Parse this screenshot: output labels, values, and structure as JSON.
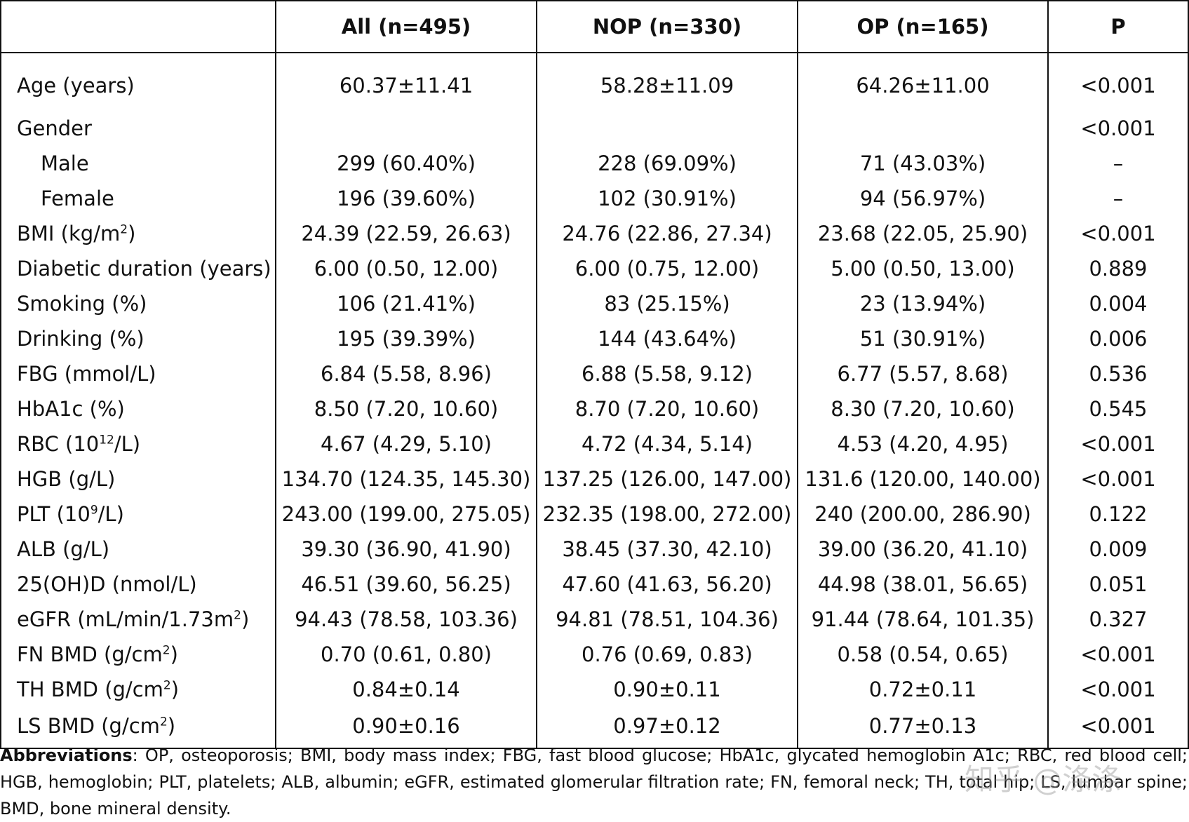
{
  "table": {
    "headers": [
      "",
      "All (n=495)",
      "NOP (n=330)",
      "OP (n=165)",
      "P"
    ],
    "rows": [
      {
        "label": "Age (years)",
        "sup": "",
        "label_after": "",
        "all": "60.37±11.41",
        "nop": "58.28±11.09",
        "op": "64.26±11.00",
        "p": "<0.001"
      },
      {
        "label": "Gender",
        "sup": "",
        "label_after": "",
        "all": "",
        "nop": "",
        "op": "",
        "p": "<0.001"
      },
      {
        "label": "Male",
        "sup": "",
        "label_after": "",
        "all": "299 (60.40%)",
        "nop": "228 (69.09%)",
        "op": "71 (43.03%)",
        "p": "–",
        "sub": true
      },
      {
        "label": "Female",
        "sup": "",
        "label_after": "",
        "all": "196 (39.60%)",
        "nop": "102 (30.91%)",
        "op": "94 (56.97%)",
        "p": "–",
        "sub": true
      },
      {
        "label": "BMI (kg/m",
        "sup": "2",
        "label_after": ")",
        "all": "24.39 (22.59, 26.63)",
        "nop": "24.76 (22.86, 27.34)",
        "op": "23.68 (22.05, 25.90)",
        "p": "<0.001"
      },
      {
        "label": "Diabetic duration (years)",
        "sup": "",
        "label_after": "",
        "all": "6.00 (0.50, 12.00)",
        "nop": "6.00 (0.75, 12.00)",
        "op": "5.00 (0.50, 13.00)",
        "p": "0.889"
      },
      {
        "label": "Smoking (%)",
        "sup": "",
        "label_after": "",
        "all": "106 (21.41%)",
        "nop": "83 (25.15%)",
        "op": "23 (13.94%)",
        "p": "0.004"
      },
      {
        "label": "Drinking (%)",
        "sup": "",
        "label_after": "",
        "all": "195 (39.39%)",
        "nop": "144 (43.64%)",
        "op": "51 (30.91%)",
        "p": "0.006"
      },
      {
        "label": "FBG (mmol/L)",
        "sup": "",
        "label_after": "",
        "all": "6.84 (5.58, 8.96)",
        "nop": "6.88 (5.58, 9.12)",
        "op": "6.77 (5.57, 8.68)",
        "p": "0.536"
      },
      {
        "label": "HbA1c (%)",
        "sup": "",
        "label_after": "",
        "all": "8.50 (7.20, 10.60)",
        "nop": "8.70 (7.20, 10.60)",
        "op": "8.30 (7.20, 10.60)",
        "p": "0.545"
      },
      {
        "label": "RBC (10",
        "sup": "12",
        "label_after": "/L)",
        "all": "4.67 (4.29, 5.10)",
        "nop": "4.72 (4.34, 5.14)",
        "op": "4.53 (4.20, 4.95)",
        "p": "<0.001"
      },
      {
        "label": "HGB (g/L)",
        "sup": "",
        "label_after": "",
        "all": "134.70 (124.35, 145.30)",
        "nop": "137.25 (126.00, 147.00)",
        "op": "131.6 (120.00, 140.00)",
        "p": "<0.001"
      },
      {
        "label": "PLT (10",
        "sup": "9",
        "label_after": "/L)",
        "all": "243.00 (199.00, 275.05)",
        "nop": "232.35 (198.00, 272.00)",
        "op": "240 (200.00, 286.90)",
        "p": "0.122"
      },
      {
        "label": "ALB (g/L)",
        "sup": "",
        "label_after": "",
        "all": "39.30 (36.90, 41.90)",
        "nop": "38.45 (37.30, 42.10)",
        "op": "39.00 (36.20, 41.10)",
        "p": "0.009"
      },
      {
        "label": "25(OH)D (nmol/L)",
        "sup": "",
        "label_after": "",
        "all": "46.51 (39.60, 56.25)",
        "nop": "47.60 (41.63, 56.20)",
        "op": "44.98 (38.01, 56.65)",
        "p": "0.051"
      },
      {
        "label": "eGFR (mL/min/1.73m",
        "sup": "2",
        "label_after": ")",
        "all": "94.43 (78.58, 103.36)",
        "nop": "94.81 (78.51, 104.36)",
        "op": "91.44 (78.64, 101.35)",
        "p": "0.327"
      },
      {
        "label": "FN BMD (g/cm",
        "sup": "2",
        "label_after": ")",
        "all": "0.70 (0.61, 0.80)",
        "nop": "0.76 (0.69, 0.83)",
        "op": "0.58 (0.54, 0.65)",
        "p": "<0.001"
      },
      {
        "label": "TH BMD (g/cm",
        "sup": "2",
        "label_after": ")",
        "all": "0.84±0.14",
        "nop": "0.90±0.11",
        "op": "0.72±0.11",
        "p": "<0.001"
      },
      {
        "label": "LS BMD (g/cm",
        "sup": "2",
        "label_after": ")",
        "all": "0.90±0.16",
        "nop": "0.97±0.12",
        "op": "0.77±0.13",
        "p": "<0.001"
      }
    ]
  },
  "footnote": {
    "heading": "Abbreviations",
    "text": ": OP, osteoporosis; BMI, body mass index; FBG, fast blood glucose; HbA1c, glycated hemoglobin A1c; RBC, red blood cell; HGB, hemoglobin; PLT, platelets; ALB, albumin; eGFR, estimated glomerular filtration rate; FN, femoral neck; TH, total hip; LS, lumbar spine; BMD, bone mineral density."
  },
  "watermark": "知乎 @涤涤"
}
